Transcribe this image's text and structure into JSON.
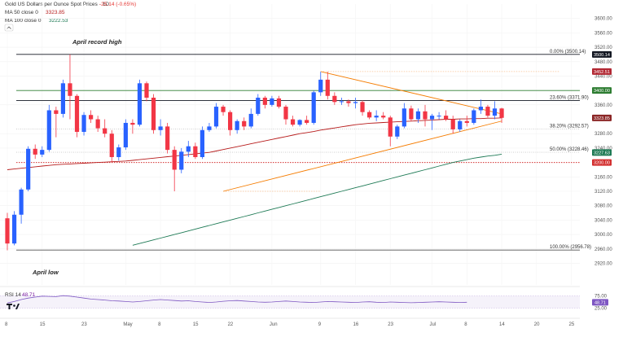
{
  "header": {
    "title": "Gold US Dollars per Ounce Spot Prices · 1D",
    "change": "-25.14 (-0.65%)",
    "ma50_label": "MA 50 close 0",
    "ma50_value": "3323.85",
    "ma100_label": "MA 100 close 0",
    "ma100_value": "3222.53"
  },
  "annotations": {
    "april_high": "April record high",
    "april_low": "April low"
  },
  "fib_levels": [
    {
      "label": "0.00% (3500.14)",
      "price": 3500.14
    },
    {
      "label": "23.60% (3371.90)",
      "price": 3371.9
    },
    {
      "label": "38.20% (3292.57)",
      "price": 3292.57
    },
    {
      "label": "50.00% (3228.46)",
      "price": 3228.46
    },
    {
      "label": "100.00% (2956.78)",
      "price": 2956.78
    }
  ],
  "price_tags": [
    {
      "text": "3500.14",
      "price": 3500.14,
      "color": "#131722"
    },
    {
      "text": "3452.51",
      "price": 3452.51,
      "color": "#b22833"
    },
    {
      "text": "3400.00",
      "price": 3400.0,
      "color": "#2e7d32"
    },
    {
      "text": "3323.85",
      "price": 3323.85,
      "color": "#8b2525"
    },
    {
      "text": "3227.63",
      "price": 3227.63,
      "color": "#1e7a55"
    },
    {
      "text": "3200.00",
      "price": 3200.0,
      "color": "#d32f2f"
    }
  ],
  "rsi": {
    "label": "RSI 14",
    "value": "48.71",
    "ticks": [
      {
        "text": "75.00",
        "v": 75
      },
      {
        "text": "25.00",
        "v": 25
      }
    ],
    "values": [
      46,
      52,
      60,
      66,
      70,
      74,
      73,
      72,
      76,
      74,
      70,
      66,
      62,
      60,
      58,
      55,
      54,
      52,
      50,
      52,
      55,
      58,
      60,
      58,
      56,
      54,
      55,
      52,
      50,
      48,
      50,
      53,
      55,
      56,
      54,
      52,
      50,
      49,
      50,
      52,
      54,
      52,
      50,
      49,
      48,
      50,
      52,
      51,
      50,
      49,
      48,
      50,
      51,
      49,
      48,
      50,
      49,
      48,
      47,
      48,
      49,
      50,
      51,
      50,
      49,
      48,
      49
    ]
  },
  "chart_data": {
    "type": "line",
    "title": "Gold US Dollars per Ounce Spot Prices",
    "ylim": [
      2860,
      3640
    ],
    "y_ticks": [
      3600,
      3560,
      3520,
      3480,
      3440,
      3360,
      3280,
      3240,
      3160,
      3120,
      3080,
      3040,
      3000,
      2960,
      2920
    ],
    "x_tick_labels": [
      "8",
      "15",
      "23",
      "May",
      "8",
      "15",
      "22",
      "Jun",
      "9",
      "16",
      "23",
      "Jul",
      "8",
      "14",
      "20",
      "25"
    ],
    "x_tick_index": [
      0,
      5,
      11,
      17,
      22,
      27,
      32,
      38,
      45,
      50,
      55,
      61,
      66,
      71,
      76,
      81
    ],
    "candles": [
      {
        "o": 3045,
        "h": 3060,
        "l": 2956,
        "c": 2975
      },
      {
        "o": 2975,
        "h": 3065,
        "l": 2970,
        "c": 3055
      },
      {
        "o": 3055,
        "h": 3130,
        "l": 3030,
        "c": 3125
      },
      {
        "o": 3125,
        "h": 3245,
        "l": 3120,
        "c": 3238
      },
      {
        "o": 3238,
        "h": 3250,
        "l": 3210,
        "c": 3222
      },
      {
        "o": 3222,
        "h": 3245,
        "l": 3215,
        "c": 3235
      },
      {
        "o": 3235,
        "h": 3360,
        "l": 3230,
        "c": 3345
      },
      {
        "o": 3345,
        "h": 3355,
        "l": 3270,
        "c": 3335
      },
      {
        "o": 3335,
        "h": 3430,
        "l": 3325,
        "c": 3420
      },
      {
        "o": 3420,
        "h": 3500,
        "l": 3320,
        "c": 3385
      },
      {
        "o": 3385,
        "h": 3390,
        "l": 3270,
        "c": 3285
      },
      {
        "o": 3285,
        "h": 3340,
        "l": 3275,
        "c": 3332
      },
      {
        "o": 3332,
        "h": 3345,
        "l": 3310,
        "c": 3320
      },
      {
        "o": 3320,
        "h": 3330,
        "l": 3285,
        "c": 3295
      },
      {
        "o": 3295,
        "h": 3320,
        "l": 3270,
        "c": 3280
      },
      {
        "o": 3280,
        "h": 3290,
        "l": 3200,
        "c": 3215
      },
      {
        "o": 3215,
        "h": 3250,
        "l": 3205,
        "c": 3242
      },
      {
        "o": 3242,
        "h": 3320,
        "l": 3235,
        "c": 3310
      },
      {
        "o": 3310,
        "h": 3320,
        "l": 3280,
        "c": 3305
      },
      {
        "o": 3305,
        "h": 3430,
        "l": 3300,
        "c": 3420
      },
      {
        "o": 3420,
        "h": 3425,
        "l": 3370,
        "c": 3380
      },
      {
        "o": 3380,
        "h": 3390,
        "l": 3280,
        "c": 3290
      },
      {
        "o": 3290,
        "h": 3320,
        "l": 3275,
        "c": 3300
      },
      {
        "o": 3300,
        "h": 3310,
        "l": 3225,
        "c": 3235
      },
      {
        "o": 3235,
        "h": 3245,
        "l": 3120,
        "c": 3180
      },
      {
        "o": 3180,
        "h": 3240,
        "l": 3170,
        "c": 3230
      },
      {
        "o": 3230,
        "h": 3260,
        "l": 3215,
        "c": 3245
      },
      {
        "o": 3245,
        "h": 3255,
        "l": 3210,
        "c": 3215
      },
      {
        "o": 3215,
        "h": 3300,
        "l": 3210,
        "c": 3290
      },
      {
        "o": 3290,
        "h": 3310,
        "l": 3285,
        "c": 3300
      },
      {
        "o": 3300,
        "h": 3365,
        "l": 3295,
        "c": 3355
      },
      {
        "o": 3355,
        "h": 3360,
        "l": 3330,
        "c": 3340
      },
      {
        "o": 3340,
        "h": 3345,
        "l": 3275,
        "c": 3290
      },
      {
        "o": 3290,
        "h": 3320,
        "l": 3280,
        "c": 3315
      },
      {
        "o": 3315,
        "h": 3325,
        "l": 3290,
        "c": 3300
      },
      {
        "o": 3300,
        "h": 3350,
        "l": 3295,
        "c": 3335
      },
      {
        "o": 3335,
        "h": 3390,
        "l": 3330,
        "c": 3380
      },
      {
        "o": 3380,
        "h": 3385,
        "l": 3350,
        "c": 3360
      },
      {
        "o": 3360,
        "h": 3385,
        "l": 3355,
        "c": 3378
      },
      {
        "o": 3378,
        "h": 3385,
        "l": 3350,
        "c": 3355
      },
      {
        "o": 3355,
        "h": 3360,
        "l": 3305,
        "c": 3320
      },
      {
        "o": 3320,
        "h": 3330,
        "l": 3300,
        "c": 3305
      },
      {
        "o": 3305,
        "h": 3320,
        "l": 3300,
        "c": 3318
      },
      {
        "o": 3318,
        "h": 3330,
        "l": 3305,
        "c": 3310
      },
      {
        "o": 3310,
        "h": 3400,
        "l": 3305,
        "c": 3395
      },
      {
        "o": 3395,
        "h": 3452,
        "l": 3385,
        "c": 3430
      },
      {
        "o": 3430,
        "h": 3452,
        "l": 3375,
        "c": 3385
      },
      {
        "o": 3385,
        "h": 3395,
        "l": 3360,
        "c": 3368
      },
      {
        "o": 3368,
        "h": 3380,
        "l": 3360,
        "c": 3370
      },
      {
        "o": 3370,
        "h": 3375,
        "l": 3355,
        "c": 3365
      },
      {
        "o": 3365,
        "h": 3380,
        "l": 3350,
        "c": 3368
      },
      {
        "o": 3368,
        "h": 3372,
        "l": 3330,
        "c": 3340
      },
      {
        "o": 3340,
        "h": 3345,
        "l": 3320,
        "c": 3325
      },
      {
        "o": 3325,
        "h": 3345,
        "l": 3315,
        "c": 3330
      },
      {
        "o": 3330,
        "h": 3340,
        "l": 3320,
        "c": 3325
      },
      {
        "o": 3325,
        "h": 3330,
        "l": 3245,
        "c": 3272
      },
      {
        "o": 3272,
        "h": 3305,
        "l": 3265,
        "c": 3300
      },
      {
        "o": 3300,
        "h": 3365,
        "l": 3295,
        "c": 3350
      },
      {
        "o": 3350,
        "h": 3358,
        "l": 3315,
        "c": 3320
      },
      {
        "o": 3320,
        "h": 3350,
        "l": 3310,
        "c": 3342
      },
      {
        "o": 3342,
        "h": 3360,
        "l": 3300,
        "c": 3320
      },
      {
        "o": 3320,
        "h": 3335,
        "l": 3290,
        "c": 3330
      },
      {
        "o": 3330,
        "h": 3340,
        "l": 3320,
        "c": 3330
      },
      {
        "o": 3330,
        "h": 3345,
        "l": 3315,
        "c": 3320
      },
      {
        "o": 3320,
        "h": 3330,
        "l": 3280,
        "c": 3292
      },
      {
        "o": 3292,
        "h": 3320,
        "l": 3285,
        "c": 3315
      },
      {
        "o": 3315,
        "h": 3330,
        "l": 3300,
        "c": 3310
      },
      {
        "o": 3310,
        "h": 3350,
        "l": 3305,
        "c": 3345
      },
      {
        "o": 3345,
        "h": 3375,
        "l": 3335,
        "c": 3355
      },
      {
        "o": 3355,
        "h": 3360,
        "l": 3325,
        "c": 3330
      },
      {
        "o": 3330,
        "h": 3370,
        "l": 3320,
        "c": 3350
      },
      {
        "o": 3350,
        "h": 3352,
        "l": 3310,
        "c": 3324
      }
    ],
    "ma50": [
      3180,
      3182,
      3184,
      3186,
      3188,
      3190,
      3192,
      3194,
      3195,
      3196,
      3197,
      3198,
      3199,
      3200,
      3201,
      3202,
      3203,
      3204,
      3206,
      3208,
      3210,
      3212,
      3214,
      3216,
      3218,
      3220,
      3222,
      3224,
      3226,
      3228,
      3232,
      3236,
      3240,
      3244,
      3248,
      3252,
      3256,
      3260,
      3264,
      3268,
      3272,
      3276,
      3280,
      3283,
      3286,
      3290,
      3293,
      3296,
      3299,
      3302,
      3305,
      3307,
      3309,
      3310,
      3311,
      3312,
      3313,
      3314,
      3315,
      3316,
      3317,
      3318,
      3319,
      3320,
      3320,
      3321,
      3321,
      3322,
      3322,
      3323,
      3323,
      3324
    ],
    "ma100": [
      2895,
      2898,
      2901,
      2904,
      2907,
      2910,
      2914,
      2918,
      2922,
      2926,
      2930,
      2935,
      2940,
      2945,
      2950,
      2955,
      2960,
      2965,
      2970,
      2975,
      2980,
      2985,
      2990,
      2995,
      3000,
      3005,
      3010,
      3015,
      3020,
      3025,
      3030,
      3035,
      3040,
      3045,
      3050,
      3055,
      3060,
      3065,
      3070,
      3075,
      3080,
      3085,
      3090,
      3095,
      3100,
      3105,
      3110,
      3115,
      3120,
      3125,
      3130,
      3135,
      3140,
      3145,
      3150,
      3155,
      3160,
      3165,
      3170,
      3175,
      3180,
      3185,
      3190,
      3195,
      3200,
      3204,
      3208,
      3212,
      3215,
      3218,
      3220,
      3223
    ],
    "triangle": {
      "upper": [
        {
          "i": 45,
          "price": 3452.51
        },
        {
          "i": 71,
          "price": 3335
        }
      ],
      "lower": [
        {
          "i": 31,
          "price": 3120
        },
        {
          "i": 71,
          "price": 3315
        }
      ]
    },
    "horizontal_lines": [
      {
        "price": 3500.14,
        "color": "#131722"
      },
      {
        "price": 3400.0,
        "color": "#2e7d32"
      },
      {
        "price": 3371.9,
        "color": "#131722"
      },
      {
        "price": 3200.0,
        "color": "#d32f2f"
      }
    ]
  }
}
